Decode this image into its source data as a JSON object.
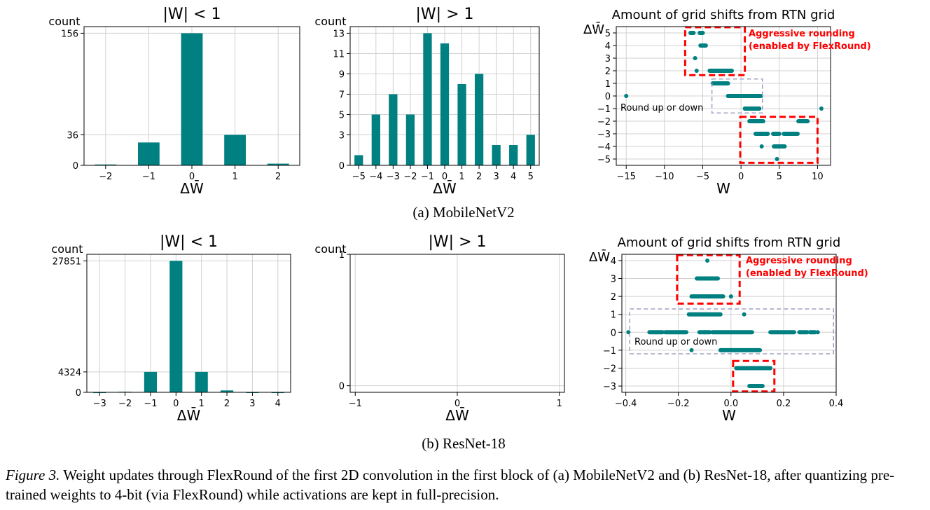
{
  "figure": {
    "sub_a": "(a)  MobileNetV2",
    "sub_b": "(b)  ResNet-18",
    "caption_label": "Figure 3.",
    "caption_text": " Weight updates through FlexRound of the first 2D convolution in the first block of (a) MobileNetV2 and (b) ResNet-18, after quantizing pre-trained weights to 4-bit (via FlexRound) while activations are kept in full-precision."
  },
  "colors": {
    "teal": "#008080",
    "red": "#ff0000",
    "dash_gray": "#a0a0c0",
    "grid": "#d0d0d0"
  },
  "chart_data": [
    {
      "type": "bar",
      "title": "|W| < 1",
      "xlabel": "ΔW̄",
      "ylabel": "count",
      "categories": [
        "−2",
        "−1",
        "0",
        "1",
        "2"
      ],
      "values": [
        1,
        27,
        156,
        36,
        2
      ],
      "yticks": [
        0,
        36,
        156
      ],
      "ylim": [
        0,
        163.8
      ],
      "grid": true
    },
    {
      "type": "bar",
      "title": "|W| > 1",
      "xlabel": "ΔW̄",
      "ylabel": "count",
      "categories": [
        "−5",
        "−4",
        "−3",
        "−2",
        "−1",
        "0",
        "1",
        "2",
        "3",
        "4",
        "5"
      ],
      "values": [
        1,
        5,
        7,
        5,
        13,
        12,
        8,
        9,
        2,
        2,
        3
      ],
      "yticks": [
        0,
        3,
        5,
        7,
        9,
        11,
        13
      ],
      "ylim": [
        0,
        13.65
      ],
      "grid": true
    },
    {
      "type": "scatter",
      "title": "Amount of grid shifts from RTN grid",
      "xlabel": "W",
      "ylabel": "ΔW̄",
      "xlim": [
        -16.3,
        11.7
      ],
      "ylim": [
        -5.5,
        5.5
      ],
      "xticks": [
        -15,
        -10,
        -5,
        0,
        5,
        10
      ],
      "yticks": [
        -5,
        -4,
        -3,
        -2,
        -1,
        0,
        1,
        2,
        3,
        4,
        5
      ],
      "grid": true,
      "segments": [
        [
          -3.7,
          -1.7,
          1
        ],
        [
          -1.7,
          1.2,
          0
        ],
        [
          -1.5,
          2.6,
          0
        ],
        [
          0.5,
          2.4,
          -1
        ],
        [
          -4.1,
          -2.1,
          2
        ],
        [
          -3.4,
          -1.2,
          2
        ],
        [
          1.1,
          2.9,
          -2
        ],
        [
          7.5,
          8.7,
          -2
        ],
        [
          1.9,
          3.4,
          -3
        ],
        [
          4.2,
          4.8,
          -3
        ],
        [
          5.6,
          7.4,
          -3
        ],
        [
          4.3,
          5.7,
          -4
        ],
        [
          -6.6,
          -6.2,
          5
        ],
        [
          -5.4,
          -5.0,
          5
        ],
        [
          -5.3,
          -4.6,
          4
        ]
      ],
      "points": [
        [
          -15,
          0
        ],
        [
          10.5,
          -1
        ],
        [
          -6.0,
          3
        ],
        [
          -5.8,
          2
        ],
        [
          -1.9,
          2
        ],
        [
          3.5,
          -3
        ],
        [
          1.4,
          -2
        ],
        [
          2.7,
          -4
        ],
        [
          4.7,
          -5
        ],
        [
          5.0,
          -3
        ]
      ],
      "annotations": {
        "aggressive": "Aggressive rounding",
        "enabled_by": "(enabled by FlexRound)",
        "round": "Round up or down"
      }
    },
    {
      "type": "bar",
      "title": "|W| < 1",
      "xlabel": "ΔW̄",
      "ylabel": "count",
      "categories": [
        "−3",
        "−2",
        "−1",
        "0",
        "1",
        "2",
        "3",
        "4"
      ],
      "values": [
        20,
        120,
        4324,
        27851,
        4324,
        400,
        30,
        20
      ],
      "yticks": [
        0,
        4324,
        27851
      ],
      "ylim": [
        0,
        29243
      ],
      "grid": true
    },
    {
      "type": "bar",
      "title": "|W| > 1",
      "xlabel": "ΔW̄",
      "ylabel": "count",
      "categories": [],
      "values": [],
      "xticks": [
        -1,
        0,
        1
      ],
      "yticks": [
        0,
        1
      ],
      "xlim": [
        -1.05,
        1.05
      ],
      "ylim": [
        -0.05,
        1.0
      ],
      "grid": true
    },
    {
      "type": "scatter",
      "title": "Amount of grid shifts from RTN grid",
      "xlabel": "W",
      "ylabel": "ΔW̄",
      "xlim": [
        -0.415,
        0.4
      ],
      "ylim": [
        -3.35,
        4.35
      ],
      "xticks": [
        -0.4,
        -0.2,
        0.0,
        0.2,
        0.4
      ],
      "yticks": [
        -3,
        -2,
        -1,
        0,
        1,
        2,
        3,
        4
      ],
      "grid": true,
      "segments": [
        [
          -0.31,
          -0.26,
          0
        ],
        [
          -0.25,
          -0.17,
          0
        ],
        [
          -0.12,
          -0.08,
          0
        ],
        [
          -0.07,
          0.08,
          0
        ],
        [
          0.15,
          0.24,
          0
        ],
        [
          0.26,
          0.29,
          0
        ],
        [
          0.3,
          0.32,
          0
        ],
        [
          -0.16,
          -0.04,
          1
        ],
        [
          -0.04,
          0.11,
          -1
        ],
        [
          0.02,
          0.15,
          -2
        ],
        [
          -0.13,
          -0.06,
          3
        ],
        [
          -0.15,
          -0.03,
          2
        ],
        [
          0.07,
          0.12,
          -3
        ],
        [
          -0.09,
          -0.05,
          3
        ]
      ],
      "points": [
        [
          -0.39,
          0
        ],
        [
          0.33,
          0
        ],
        [
          -0.09,
          4
        ],
        [
          -0.15,
          -1
        ],
        [
          0.05,
          1
        ],
        [
          -0.1,
          0
        ],
        [
          0.0,
          2
        ]
      ],
      "annotations": {
        "aggressive": "Aggressive rounding",
        "enabled_by": "(enabled by FlexRound)",
        "round": "Round up or down"
      }
    }
  ]
}
